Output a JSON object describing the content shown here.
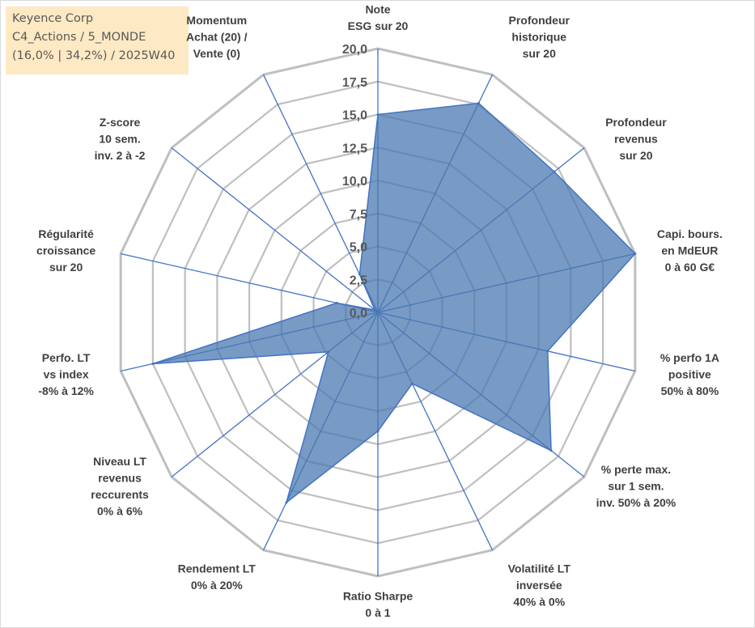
{
  "info": {
    "line1": "Keyence Corp",
    "line2": "C4_Actions / 5_MONDE",
    "line3": "(16,0% | 34,2%) / 2025W40"
  },
  "colors": {
    "fill": "#4a79b1",
    "line": "#4472c4",
    "grid": "#bfbfbf",
    "info_bg": "#fde9c3"
  },
  "chart_data": {
    "type": "radar",
    "title": "",
    "range": [
      0,
      20
    ],
    "ticks": [
      "0,0",
      "2,5",
      "5,0",
      "7,5",
      "10,0",
      "12,5",
      "15,0",
      "17,5",
      "20,0"
    ],
    "axes": [
      {
        "lines": [
          "Note",
          "ESG sur 20"
        ],
        "value": 15.0
      },
      {
        "lines": [
          "Profondeur",
          "historique",
          "sur 20"
        ],
        "value": 17.6
      },
      {
        "lines": [
          "Profondeur",
          "revenus",
          "sur 20"
        ],
        "value": 17.1
      },
      {
        "lines": [
          "Capi. bours.",
          "en MdEUR",
          "0 à 60 G€"
        ],
        "value": 20.0
      },
      {
        "lines": [
          "% perfo 1A",
          "positive",
          "50% à 80%"
        ],
        "value": 13.2
      },
      {
        "lines": [
          "% perte max.",
          "sur 1 sem.",
          "inv. 50% à 20%"
        ],
        "value": 16.8
      },
      {
        "lines": [
          "Volatilité LT",
          "inversée",
          "40% à 0%"
        ],
        "value": 6.0
      },
      {
        "lines": [
          "Ratio Sharpe",
          "0 à 1"
        ],
        "value": 9.0
      },
      {
        "lines": [
          "Rendement LT",
          "0% à 20%"
        ],
        "value": 16.0
      },
      {
        "lines": [
          "Niveau LT",
          "revenus",
          "reccurents",
          "0% à 6%"
        ],
        "value": 4.8
      },
      {
        "lines": [
          "Perfo. LT",
          "vs index",
          "-8% à 12%"
        ],
        "value": 17.5
      },
      {
        "lines": [
          "Régularité",
          "croissance",
          "sur 20"
        ],
        "value": 3.2
      },
      {
        "lines": [
          "Z-score",
          "10 sem.",
          "inv. 2 à -2"
        ],
        "value": 0.3
      },
      {
        "lines": [
          "Momentum",
          "Achat (20) /",
          "Vente (0)"
        ],
        "value": 3.2
      }
    ]
  }
}
